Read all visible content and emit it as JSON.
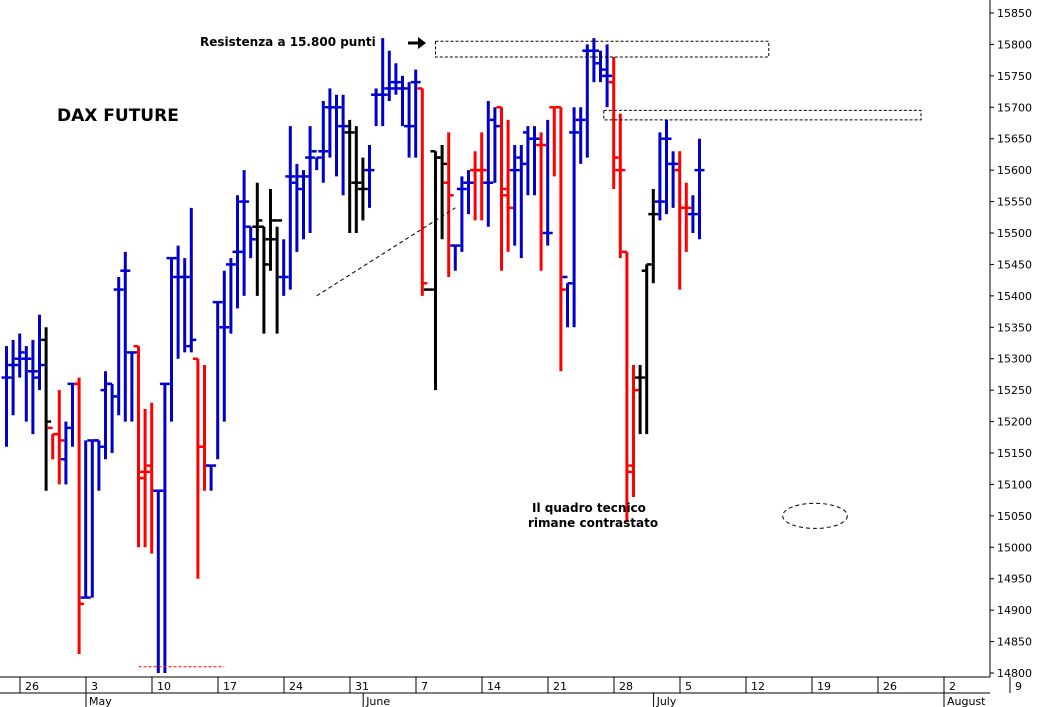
{
  "chart_data": {
    "type": "ohlc",
    "title": "DAX FUTURE",
    "annotations": {
      "resistance": "Resistenza a 15.800 punti",
      "comment_line1": "Il quadro tecnico",
      "comment_line2": "rimane contrastato"
    },
    "y_axis": {
      "position": "right",
      "range": [
        14760,
        15860
      ],
      "ticks": [
        14800,
        14850,
        14900,
        14950,
        15000,
        15050,
        15100,
        15150,
        15200,
        15250,
        15300,
        15350,
        15400,
        15450,
        15500,
        15550,
        15600,
        15650,
        15700,
        15750,
        15800,
        15850
      ]
    },
    "x_axis": {
      "day_ticks": [
        {
          "label": "26",
          "bar": 2.5
        },
        {
          "label": "3",
          "bar": 12.5
        },
        {
          "label": "10",
          "bar": 22.5
        },
        {
          "label": "17",
          "bar": 32.5
        },
        {
          "label": "24",
          "bar": 42.5
        },
        {
          "label": "31",
          "bar": 52.5
        },
        {
          "label": "7",
          "bar": 62.5
        },
        {
          "label": "14",
          "bar": 72.5
        },
        {
          "label": "21",
          "bar": 82.5
        },
        {
          "label": "28",
          "bar": 92.5
        },
        {
          "label": "5",
          "bar": 102.5
        },
        {
          "label": "12",
          "bar": 112.5
        },
        {
          "label": "19",
          "bar": 122.5
        },
        {
          "label": "26",
          "bar": 132.5
        },
        {
          "label": "2",
          "bar": 142.5
        },
        {
          "label": "9",
          "bar": 152.5
        }
      ],
      "month_labels": [
        {
          "label": "May",
          "bar": 12.5
        },
        {
          "label": "June",
          "bar": 54.5
        },
        {
          "label": "July",
          "bar": 98.5
        },
        {
          "label": "August",
          "bar": 142.5
        }
      ]
    },
    "colors": {
      "up": "#0000cc",
      "down": "#ff0000",
      "neutral": "#000000"
    },
    "series": [
      {
        "name": "",
        "values": [
          {
            "o": 15270,
            "h": 15320,
            "l": 15160,
            "c": 15270,
            "t": "u"
          },
          {
            "o": 15290,
            "h": 15330,
            "l": 15210,
            "c": 15290,
            "t": "u"
          },
          {
            "o": 15300,
            "h": 15340,
            "l": 15270,
            "c": 15310,
            "t": "u"
          },
          {
            "o": 15300,
            "h": 15320,
            "l": 15200,
            "c": 15300,
            "t": "u"
          },
          {
            "o": 15280,
            "h": 15330,
            "l": 15180,
            "c": 15280,
            "t": "u"
          },
          {
            "o": 15270,
            "h": 15370,
            "l": 15250,
            "c": 15290,
            "t": "u"
          },
          {
            "o": 15330,
            "h": 15350,
            "l": 15090,
            "c": 15200,
            "t": "n"
          },
          {
            "o": 15190,
            "h": 15180,
            "l": 15140,
            "c": 15180,
            "t": "d"
          },
          {
            "o": 15180,
            "h": 15250,
            "l": 15100,
            "c": 15170,
            "t": "d"
          },
          {
            "o": 15140,
            "h": 15200,
            "l": 15100,
            "c": 15190,
            "t": "u"
          },
          {
            "o": 15260,
            "h": 15260,
            "l": 15160,
            "c": 15260,
            "t": "u"
          },
          {
            "o": 15260,
            "h": 15270,
            "l": 14830,
            "c": 14910,
            "t": "d"
          },
          {
            "o": 14920,
            "h": 15170,
            "l": 14920,
            "c": 14920,
            "t": "u"
          },
          {
            "o": 15170,
            "h": 15170,
            "l": 14920,
            "c": 15170,
            "t": "u"
          },
          {
            "o": 15170,
            "h": 15170,
            "l": 15090,
            "c": 15160,
            "t": "u"
          },
          {
            "o": 15250,
            "h": 15280,
            "l": 15140,
            "c": 15260,
            "t": "u"
          },
          {
            "o": 15260,
            "h": 15260,
            "l": 15150,
            "c": 15240,
            "t": "u"
          },
          {
            "o": 15410,
            "h": 15430,
            "l": 15210,
            "c": 15410,
            "t": "u"
          },
          {
            "o": 15440,
            "h": 15470,
            "l": 15200,
            "c": 15440,
            "t": "u"
          },
          {
            "o": 15310,
            "h": 15310,
            "l": 15200,
            "c": 15310,
            "t": "u"
          },
          {
            "o": 15320,
            "h": 15320,
            "l": 15000,
            "c": 15110,
            "t": "d"
          },
          {
            "o": 15120,
            "h": 15220,
            "l": 15000,
            "c": 15120,
            "t": "d"
          },
          {
            "o": 15130,
            "h": 15230,
            "l": 14990,
            "c": 15090,
            "t": "d"
          },
          {
            "o": 15090,
            "h": 15090,
            "l": 14800,
            "c": 15090,
            "t": "u"
          },
          {
            "o": 15260,
            "h": 15260,
            "l": 14800,
            "c": 15260,
            "t": "u"
          },
          {
            "o": 15460,
            "h": 15460,
            "l": 15200,
            "c": 15460,
            "t": "u"
          },
          {
            "o": 15430,
            "h": 15480,
            "l": 15300,
            "c": 15430,
            "t": "u"
          },
          {
            "o": 15430,
            "h": 15460,
            "l": 15310,
            "c": 15430,
            "t": "u"
          },
          {
            "o": 15320,
            "h": 15540,
            "l": 15310,
            "c": 15330,
            "t": "u"
          },
          {
            "o": 15300,
            "h": 15300,
            "l": 14950,
            "c": 15160,
            "t": "d"
          },
          {
            "o": 15160,
            "h": 15290,
            "l": 15090,
            "c": 15130,
            "t": "d"
          },
          {
            "o": 15130,
            "h": 15130,
            "l": 15090,
            "c": 15130,
            "t": "u"
          },
          {
            "o": 15390,
            "h": 15390,
            "l": 15140,
            "c": 15390,
            "t": "u"
          },
          {
            "o": 15350,
            "h": 15440,
            "l": 15200,
            "c": 15350,
            "t": "u"
          },
          {
            "o": 15450,
            "h": 15460,
            "l": 15340,
            "c": 15450,
            "t": "u"
          },
          {
            "o": 15470,
            "h": 15560,
            "l": 15380,
            "c": 15470,
            "t": "u"
          },
          {
            "o": 15550,
            "h": 15600,
            "l": 15400,
            "c": 15550,
            "t": "u"
          },
          {
            "o": 15510,
            "h": 15510,
            "l": 15460,
            "c": 15490,
            "t": "u"
          },
          {
            "o": 15510,
            "h": 15580,
            "l": 15400,
            "c": 15520,
            "t": "n"
          },
          {
            "o": 15510,
            "h": 15510,
            "l": 15340,
            "c": 15450,
            "t": "n"
          },
          {
            "o": 15490,
            "h": 15570,
            "l": 15440,
            "c": 15490,
            "t": "n"
          },
          {
            "o": 15520,
            "h": 15510,
            "l": 15340,
            "c": 15520,
            "t": "n"
          },
          {
            "o": 15430,
            "h": 15490,
            "l": 15400,
            "c": 15430,
            "t": "u"
          },
          {
            "o": 15590,
            "h": 15670,
            "l": 15410,
            "c": 15590,
            "t": "u"
          },
          {
            "o": 15580,
            "h": 15610,
            "l": 15470,
            "c": 15570,
            "t": "u"
          },
          {
            "o": 15590,
            "h": 15600,
            "l": 15490,
            "c": 15590,
            "t": "u"
          },
          {
            "o": 15620,
            "h": 15670,
            "l": 15500,
            "c": 15620,
            "t": "u"
          },
          {
            "o": 15630,
            "h": 15620,
            "l": 15600,
            "c": 15620,
            "t": "u"
          },
          {
            "o": 15630,
            "h": 15710,
            "l": 15580,
            "c": 15630,
            "t": "u"
          },
          {
            "o": 15700,
            "h": 15730,
            "l": 15620,
            "c": 15700,
            "t": "u"
          },
          {
            "o": 15700,
            "h": 15720,
            "l": 15590,
            "c": 15700,
            "t": "u"
          },
          {
            "o": 15670,
            "h": 15720,
            "l": 15560,
            "c": 15670,
            "t": "u"
          },
          {
            "o": 15660,
            "h": 15680,
            "l": 15500,
            "c": 15660,
            "t": "n"
          },
          {
            "o": 15580,
            "h": 15670,
            "l": 15500,
            "c": 15580,
            "t": "n"
          },
          {
            "o": 15570,
            "h": 15620,
            "l": 15520,
            "c": 15570,
            "t": "n"
          },
          {
            "o": 15600,
            "h": 15640,
            "l": 15540,
            "c": 15600,
            "t": "u"
          },
          {
            "o": 15720,
            "h": 15730,
            "l": 15670,
            "c": 15720,
            "t": "u"
          },
          {
            "o": 15720,
            "h": 15810,
            "l": 15670,
            "c": 15720,
            "t": "u"
          },
          {
            "o": 15730,
            "h": 15790,
            "l": 15710,
            "c": 15730,
            "t": "u"
          },
          {
            "o": 15740,
            "h": 15770,
            "l": 15720,
            "c": 15740,
            "t": "u"
          },
          {
            "o": 15730,
            "h": 15750,
            "l": 15670,
            "c": 15730,
            "t": "u"
          },
          {
            "o": 15670,
            "h": 15740,
            "l": 15620,
            "c": 15670,
            "t": "u"
          },
          {
            "o": 15740,
            "h": 15760,
            "l": 15620,
            "c": 15740,
            "t": "u"
          },
          {
            "o": 15730,
            "h": 15730,
            "l": 15400,
            "c": 15420,
            "t": "d"
          },
          {
            "o": 15410,
            "h": 15410,
            "l": 15410,
            "c": 15410,
            "t": "n"
          },
          {
            "o": 15630,
            "h": 15630,
            "l": 15250,
            "c": 15620,
            "t": "n"
          },
          {
            "o": 15620,
            "h": 15640,
            "l": 15490,
            "c": 15610,
            "t": "n"
          },
          {
            "o": 15580,
            "h": 15660,
            "l": 15430,
            "c": 15560,
            "t": "d"
          },
          {
            "o": 15480,
            "h": 15480,
            "l": 15440,
            "c": 15480,
            "t": "u"
          },
          {
            "o": 15570,
            "h": 15590,
            "l": 15470,
            "c": 15570,
            "t": "u"
          },
          {
            "o": 15580,
            "h": 15600,
            "l": 15530,
            "c": 15580,
            "t": "u"
          },
          {
            "o": 15600,
            "h": 15630,
            "l": 15520,
            "c": 15600,
            "t": "d"
          },
          {
            "o": 15600,
            "h": 15660,
            "l": 15520,
            "c": 15600,
            "t": "d"
          },
          {
            "o": 15580,
            "h": 15710,
            "l": 15510,
            "c": 15580,
            "t": "u"
          },
          {
            "o": 15680,
            "h": 15700,
            "l": 15580,
            "c": 15670,
            "t": "u"
          },
          {
            "o": 15700,
            "h": 15700,
            "l": 15440,
            "c": 15570,
            "t": "d"
          },
          {
            "o": 15560,
            "h": 15680,
            "l": 15470,
            "c": 15540,
            "t": "d"
          },
          {
            "o": 15600,
            "h": 15640,
            "l": 15480,
            "c": 15600,
            "t": "u"
          },
          {
            "o": 15620,
            "h": 15640,
            "l": 15460,
            "c": 15610,
            "t": "u"
          },
          {
            "o": 15660,
            "h": 15670,
            "l": 15560,
            "c": 15650,
            "t": "u"
          },
          {
            "o": 15650,
            "h": 15670,
            "l": 15560,
            "c": 15650,
            "t": "u"
          },
          {
            "o": 15640,
            "h": 15660,
            "l": 15440,
            "c": 15640,
            "t": "d"
          },
          {
            "o": 15500,
            "h": 15680,
            "l": 15480,
            "c": 15500,
            "t": "u"
          },
          {
            "o": 15700,
            "h": 15700,
            "l": 15590,
            "c": 15700,
            "t": "d"
          },
          {
            "o": 15700,
            "h": 15700,
            "l": 15280,
            "c": 15410,
            "t": "d"
          },
          {
            "o": 15430,
            "h": 15420,
            "l": 15350,
            "c": 15420,
            "t": "u"
          },
          {
            "o": 15660,
            "h": 15700,
            "l": 15350,
            "c": 15660,
            "t": "u"
          },
          {
            "o": 15680,
            "h": 15700,
            "l": 15610,
            "c": 15680,
            "t": "u"
          },
          {
            "o": 15790,
            "h": 15800,
            "l": 15620,
            "c": 15790,
            "t": "u"
          },
          {
            "o": 15790,
            "h": 15810,
            "l": 15740,
            "c": 15790,
            "t": "u"
          },
          {
            "o": 15770,
            "h": 15790,
            "l": 15740,
            "c": 15760,
            "t": "u"
          },
          {
            "o": 15750,
            "h": 15800,
            "l": 15700,
            "c": 15750,
            "t": "u"
          },
          {
            "o": 15740,
            "h": 15780,
            "l": 15570,
            "c": 15620,
            "t": "d"
          },
          {
            "o": 15600,
            "h": 15690,
            "l": 15460,
            "c": 15600,
            "t": "d"
          },
          {
            "o": 15470,
            "h": 15470,
            "l": 15040,
            "c": 15120,
            "t": "d"
          },
          {
            "o": 15130,
            "h": 15290,
            "l": 15080,
            "c": 15250,
            "t": "d"
          },
          {
            "o": 15270,
            "h": 15290,
            "l": 15180,
            "c": 15270,
            "t": "n"
          },
          {
            "o": 15440,
            "h": 15450,
            "l": 15180,
            "c": 15450,
            "t": "n"
          },
          {
            "o": 15530,
            "h": 15570,
            "l": 15420,
            "c": 15530,
            "t": "n"
          },
          {
            "o": 15550,
            "h": 15660,
            "l": 15520,
            "c": 15550,
            "t": "u"
          },
          {
            "o": 15650,
            "h": 15680,
            "l": 15530,
            "c": 15650,
            "t": "u"
          },
          {
            "o": 15610,
            "h": 15630,
            "l": 15540,
            "c": 15610,
            "t": "u"
          },
          {
            "o": 15600,
            "h": 15630,
            "l": 15410,
            "c": 15540,
            "t": "d"
          },
          {
            "o": 15540,
            "h": 15580,
            "l": 15470,
            "c": 15540,
            "t": "d"
          },
          {
            "o": 15530,
            "h": 15560,
            "l": 15500,
            "c": 15530,
            "t": "u"
          },
          {
            "o": 15600,
            "h": 15650,
            "l": 15490,
            "c": 15600,
            "t": "u"
          }
        ]
      }
    ],
    "overlays": {
      "resistance_box": {
        "x_from_bar": 65,
        "x_to_bar": 115.5,
        "y_low": 15780,
        "y_high": 15805
      },
      "support_box": {
        "x_from_bar": 90.5,
        "x_to_bar": 143,
        "y_low": 15680,
        "y_high": 15695
      },
      "low_line": {
        "x_from_bar": 20,
        "x_to_bar": 33,
        "y": 14810
      },
      "trend_line": {
        "from": {
          "bar": 47,
          "y": 15400
        },
        "to": {
          "bar": 68,
          "y": 15540
        }
      },
      "low_ellipse": {
        "bar": 122.5,
        "y": 15050,
        "rx_bars": 3.5,
        "ry_units": 20
      }
    },
    "grid": false,
    "legend": "none"
  }
}
